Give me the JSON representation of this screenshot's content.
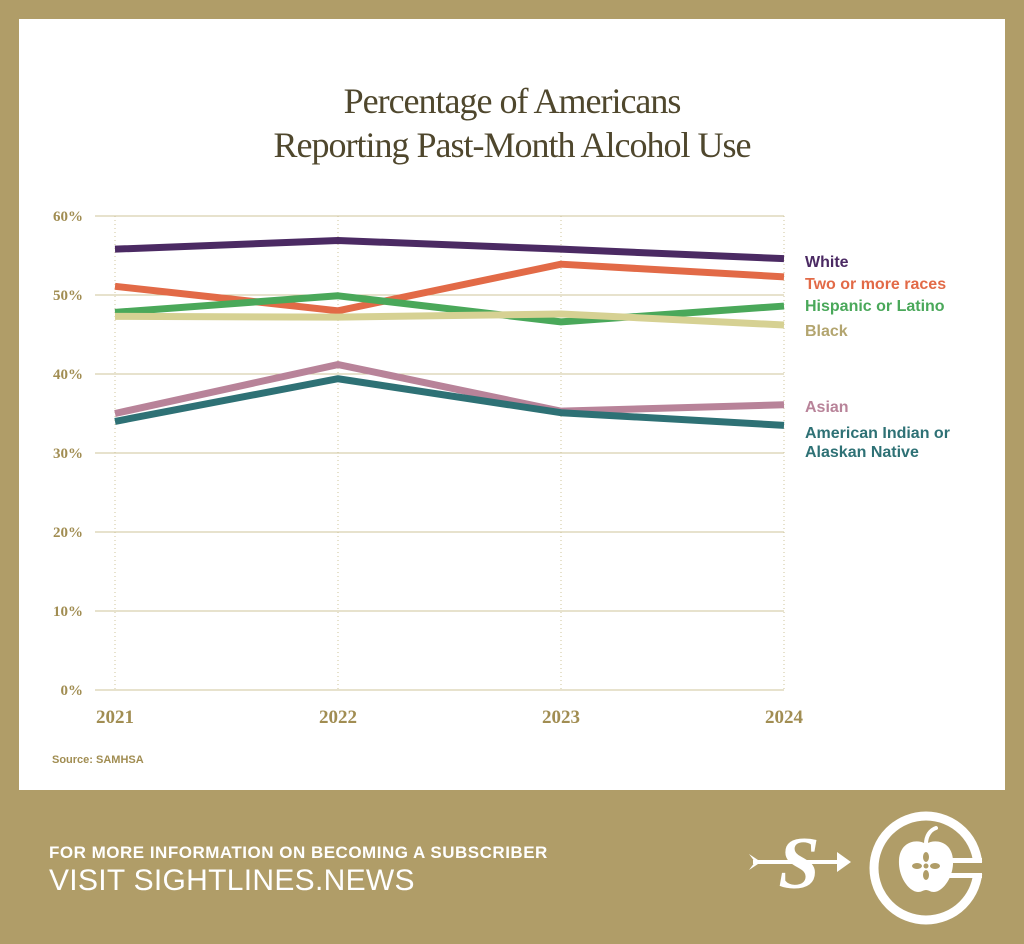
{
  "chart_data": {
    "type": "line",
    "title_lines": [
      "Percentage of Americans",
      "Reporting Past-Month Alcohol Use"
    ],
    "x": [
      "2021",
      "2022",
      "2023",
      "2024"
    ],
    "y_ticks": [
      "0%",
      "10%",
      "20%",
      "30%",
      "40%",
      "50%",
      "60%"
    ],
    "ylim": [
      0,
      60
    ],
    "grid": true,
    "legend_placement": "right, at line ends",
    "series": [
      {
        "name": "White",
        "color": "#4b2a63",
        "values": [
          55.8,
          56.9,
          55.8,
          54.6
        ]
      },
      {
        "name": "Two or more races",
        "color": "#e26a47",
        "values": [
          51.1,
          48.0,
          53.9,
          52.3
        ]
      },
      {
        "name": "Hispanic or Latino",
        "color": "#4aa85a",
        "values": [
          47.8,
          49.9,
          46.6,
          48.6
        ]
      },
      {
        "name": "Black",
        "color": "#d6d193",
        "label_color": "#b3a56f",
        "values": [
          47.3,
          47.2,
          47.6,
          46.2
        ]
      },
      {
        "name": "Asian",
        "color": "#b88399",
        "values": [
          35.0,
          41.2,
          35.3,
          36.1
        ]
      },
      {
        "name": "American Indian or Alaskan Native",
        "label_lines": [
          "American Indian or",
          "Alaskan Native"
        ],
        "color": "#2e7175",
        "values": [
          34.0,
          39.4,
          35.1,
          33.5
        ]
      }
    ]
  },
  "source": "Source: SAMHSA",
  "footer": {
    "line1": "FOR MORE INFORMATION ON BECOMING A SUBSCRIBER",
    "line2": "VISIT SIGHTLINES.NEWS"
  },
  "colors": {
    "frame": "#b09d68",
    "title": "#4f472d",
    "axis_text": "#a18d52",
    "grid": "#cfc49b"
  },
  "icons": [
    "sightlines-s-logo-icon",
    "apple-circle-logo-icon"
  ]
}
